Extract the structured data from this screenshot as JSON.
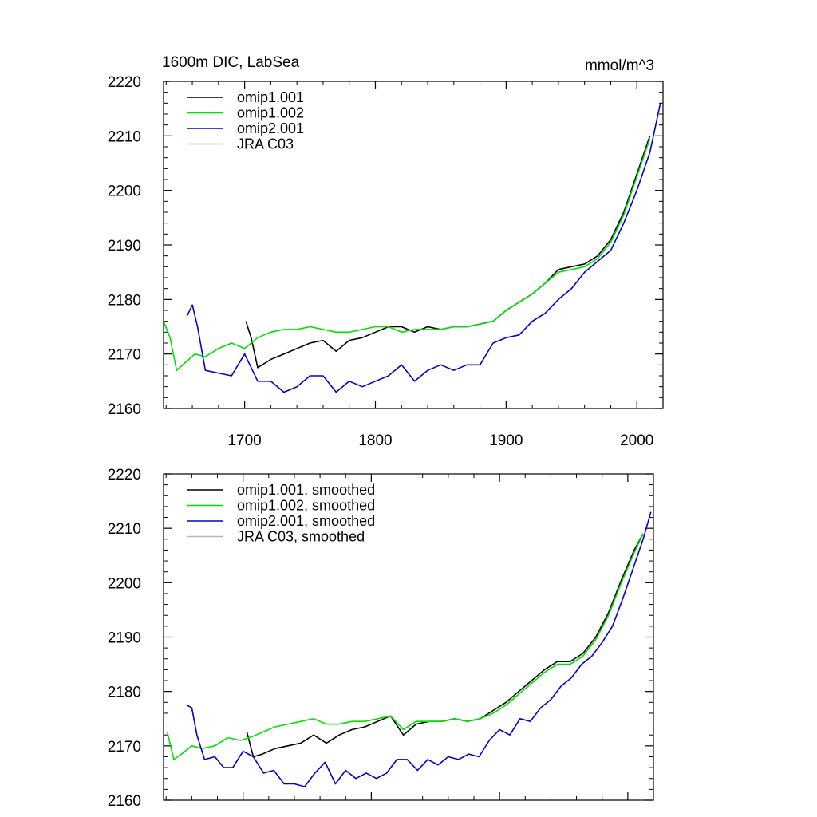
{
  "chart_data": [
    {
      "type": "line",
      "title": "1600m DIC, LabSea",
      "units": "mmol/m^3",
      "xlim": [
        1638,
        2020
      ],
      "ylim": [
        2160,
        2220
      ],
      "xticks": [
        1700,
        1800,
        1900,
        2000
      ],
      "xtick_labels": [
        "1700",
        "1800",
        "1900",
        "2000"
      ],
      "yticks": [
        2160,
        2170,
        2180,
        2190,
        2200,
        2210,
        2220
      ],
      "ytick_labels": [
        "2160",
        "2170",
        "2180",
        "2190",
        "2200",
        "2210",
        "2220"
      ],
      "legend_position": "top-left",
      "series": [
        {
          "name": "omip1.001",
          "color": "#000000",
          "x": [
            1701,
            1705,
            1710,
            1720,
            1730,
            1740,
            1750,
            1760,
            1770,
            1780,
            1790,
            1800,
            1810,
            1820,
            1830,
            1840,
            1850,
            1860,
            1870,
            1880,
            1890,
            1900,
            1910,
            1920,
            1930,
            1940,
            1950,
            1960,
            1970,
            1980,
            1990,
            2000,
            2010
          ],
          "y": [
            2176,
            2173,
            2167.5,
            2169,
            2170,
            2171,
            2172,
            2172.5,
            2170.5,
            2172.5,
            2173,
            2174,
            2175,
            2175,
            2174,
            2175,
            2174.5,
            2175,
            2175,
            2175.5,
            2176,
            2178,
            2179.5,
            2181,
            2183,
            2185.5,
            2186,
            2186.5,
            2188,
            2191,
            2196,
            2203,
            2210
          ]
        },
        {
          "name": "omip1.002",
          "color": "#00e000",
          "x": [
            1638,
            1643,
            1648,
            1655,
            1662,
            1670,
            1680,
            1690,
            1700,
            1710,
            1720,
            1730,
            1740,
            1750,
            1760,
            1770,
            1780,
            1790,
            1800,
            1810,
            1820,
            1830,
            1840,
            1850,
            1860,
            1870,
            1880,
            1890,
            1900,
            1910,
            1920,
            1930,
            1940,
            1950,
            1960,
            1970,
            1980,
            1990,
            2000,
            2010
          ],
          "y": [
            2176,
            2173,
            2167,
            2168.5,
            2170,
            2169.5,
            2171,
            2172,
            2171,
            2173,
            2174,
            2174.5,
            2174.5,
            2175,
            2174.5,
            2174,
            2174,
            2174.5,
            2175,
            2175,
            2174,
            2174.5,
            2174.5,
            2174.5,
            2175,
            2175,
            2175.5,
            2176,
            2178,
            2179.5,
            2181,
            2183,
            2185,
            2185.5,
            2186,
            2187.5,
            2190.5,
            2195.5,
            2202.5,
            2209.5
          ]
        },
        {
          "name": "omip2.001",
          "color": "#0000d0",
          "x": [
            1656,
            1660,
            1664,
            1670,
            1680,
            1690,
            1700,
            1710,
            1720,
            1730,
            1740,
            1750,
            1760,
            1770,
            1780,
            1790,
            1800,
            1810,
            1820,
            1830,
            1840,
            1850,
            1860,
            1870,
            1880,
            1890,
            1900,
            1910,
            1920,
            1930,
            1940,
            1950,
            1960,
            1970,
            1980,
            1990,
            2000,
            2010,
            2018
          ],
          "y": [
            2177,
            2179,
            2175,
            2167,
            2166.5,
            2166,
            2170,
            2165,
            2165,
            2163,
            2164,
            2166,
            2166,
            2163,
            2165,
            2164,
            2165,
            2166,
            2168,
            2165,
            2167,
            2168,
            2167,
            2168,
            2168,
            2172,
            2173,
            2173.5,
            2176,
            2177.5,
            2180,
            2182,
            2185,
            2187,
            2189,
            2194,
            2200,
            2207,
            2216
          ]
        },
        {
          "name": "JRA C03",
          "color": "#b8b8b8",
          "x": [],
          "y": []
        }
      ]
    },
    {
      "type": "line",
      "title": "",
      "xlim": [
        1638,
        2020
      ],
      "ylim": [
        2160,
        2220
      ],
      "xticks": [
        1700,
        1800,
        1900,
        2000
      ],
      "yticks": [
        2160,
        2170,
        2180,
        2190,
        2200,
        2210,
        2220
      ],
      "ytick_labels": [
        "2160",
        "2170",
        "2180",
        "2190",
        "2200",
        "2210",
        "2220"
      ],
      "legend_position": "top-left",
      "series": [
        {
          "name": "omip1.001, smoothed",
          "color": "#000000",
          "x": [
            1703,
            1708,
            1715,
            1725,
            1735,
            1745,
            1755,
            1765,
            1775,
            1785,
            1795,
            1805,
            1815,
            1825,
            1835,
            1845,
            1855,
            1865,
            1875,
            1885,
            1895,
            1905,
            1915,
            1925,
            1935,
            1945,
            1955,
            1965,
            1975,
            1985,
            1995,
            2005,
            2012
          ],
          "y": [
            2172.5,
            2168,
            2168.5,
            2169.5,
            2170,
            2170.5,
            2172,
            2170.5,
            2172,
            2173,
            2173.5,
            2174.5,
            2175.5,
            2172,
            2174,
            2174.5,
            2174.5,
            2175,
            2174.5,
            2175,
            2176.5,
            2178,
            2180,
            2182,
            2184,
            2185.5,
            2185.5,
            2187,
            2190,
            2194.5,
            2200.5,
            2206,
            2209
          ]
        },
        {
          "name": "omip1.002, smoothed",
          "color": "#00e000",
          "x": [
            1641,
            1646,
            1652,
            1660,
            1668,
            1678,
            1688,
            1698,
            1705,
            1715,
            1725,
            1735,
            1745,
            1755,
            1765,
            1775,
            1785,
            1795,
            1805,
            1815,
            1825,
            1835,
            1845,
            1855,
            1865,
            1875,
            1885,
            1895,
            1905,
            1915,
            1925,
            1935,
            1945,
            1955,
            1965,
            1975,
            1985,
            1995,
            2005,
            2012
          ],
          "y": [
            2172.5,
            2167.5,
            2168.5,
            2170,
            2169.5,
            2170,
            2171.5,
            2171,
            2171.5,
            2172.5,
            2173.5,
            2174,
            2174.5,
            2175,
            2174,
            2174,
            2174.5,
            2174.5,
            2175,
            2175.5,
            2173,
            2174.5,
            2174.5,
            2174.5,
            2175,
            2174.5,
            2175,
            2176,
            2177.5,
            2179.5,
            2181.5,
            2183.5,
            2185,
            2185,
            2186.5,
            2189.5,
            2194,
            2200,
            2205.5,
            2209
          ]
        },
        {
          "name": "omip2.001, smoothed",
          "color": "#0000d0",
          "x": [
            1656,
            1660,
            1664,
            1670,
            1678,
            1685,
            1692,
            1700,
            1708,
            1716,
            1724,
            1732,
            1740,
            1748,
            1756,
            1764,
            1772,
            1780,
            1788,
            1796,
            1804,
            1812,
            1820,
            1828,
            1836,
            1844,
            1852,
            1860,
            1868,
            1876,
            1884,
            1892,
            1900,
            1908,
            1916,
            1924,
            1932,
            1940,
            1948,
            1956,
            1964,
            1972,
            1980,
            1988,
            1996,
            2004,
            2012,
            2018
          ],
          "y": [
            2177.5,
            2177,
            2172,
            2167.5,
            2168,
            2166,
            2166,
            2169,
            2168,
            2165,
            2165.5,
            2163,
            2163,
            2162.5,
            2165,
            2167,
            2163,
            2165.5,
            2164,
            2165,
            2164,
            2165,
            2167.5,
            2167.5,
            2165.5,
            2167.5,
            2166.5,
            2168,
            2167.5,
            2168.5,
            2168,
            2171,
            2173,
            2172,
            2175,
            2174.5,
            2177,
            2178.5,
            2181,
            2182.5,
            2185,
            2186.5,
            2189,
            2192,
            2197,
            2202.5,
            2208,
            2213
          ]
        },
        {
          "name": "JRA C03, smoothed",
          "color": "#b8b8b8",
          "x": [],
          "y": []
        }
      ]
    }
  ]
}
